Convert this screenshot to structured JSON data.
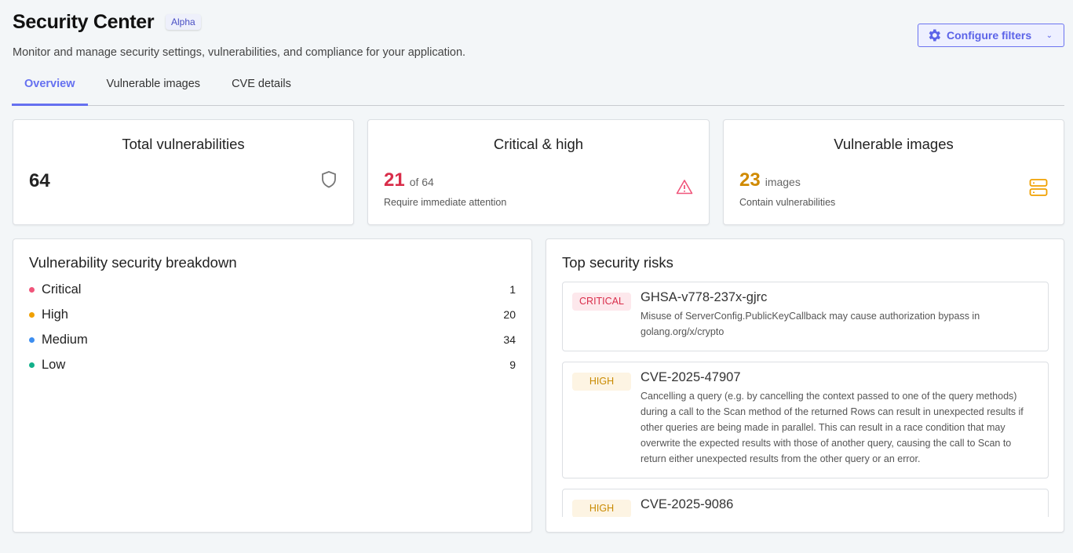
{
  "header": {
    "title": "Security Center",
    "badge": "Alpha",
    "subtitle": "Monitor and manage security settings, vulnerabilities, and compliance for your application.",
    "configure_label": "Configure filters",
    "accent": "#6570f0"
  },
  "tabs": [
    {
      "label": "Overview",
      "active": true
    },
    {
      "label": "Vulnerable images"
    },
    {
      "label": "CVE details"
    }
  ],
  "stats": [
    {
      "title": "Total vulnerabilities",
      "value": "64",
      "icon": "shield-icon"
    },
    {
      "title": "Critical & high",
      "value": "21",
      "suffix": "of 64",
      "note": "Require immediate attention",
      "color": "#d92d4a",
      "icon": "warning-icon"
    },
    {
      "title": "Vulnerable images",
      "value": "23",
      "suffix": "images",
      "note": "Contain vulnerabilities",
      "color": "#d08a00",
      "icon": "server-icon"
    }
  ],
  "breakdown": {
    "title": "Vulnerability security breakdown",
    "items": [
      {
        "label": "Critical",
        "count": "1",
        "color": "#f0557a"
      },
      {
        "label": "High",
        "count": "20",
        "color": "#f0a000"
      },
      {
        "label": "Medium",
        "count": "34",
        "color": "#3d8ef0"
      },
      {
        "label": "Low",
        "count": "9",
        "color": "#12b08a"
      }
    ]
  },
  "risks": {
    "title": "Top security risks",
    "items": [
      {
        "severity": "CRITICAL",
        "id": "GHSA-v778-237x-gjrc",
        "description": "Misuse of ServerConfig.PublicKeyCallback may cause authorization bypass in golang.org/x/crypto"
      },
      {
        "severity": "HIGH",
        "id": "CVE-2025-47907",
        "description": "Cancelling a query (e.g. by cancelling the context passed to one of the query methods) during a call to the Scan method of the returned Rows can result in unexpected results if other queries are being made in parallel. This can result in a race condition that may overwrite the expected results with those of another query, causing the call to Scan to return either unexpected results from the other query or an error."
      },
      {
        "severity": "HIGH",
        "id": "CVE-2025-9086",
        "description": ""
      }
    ]
  }
}
